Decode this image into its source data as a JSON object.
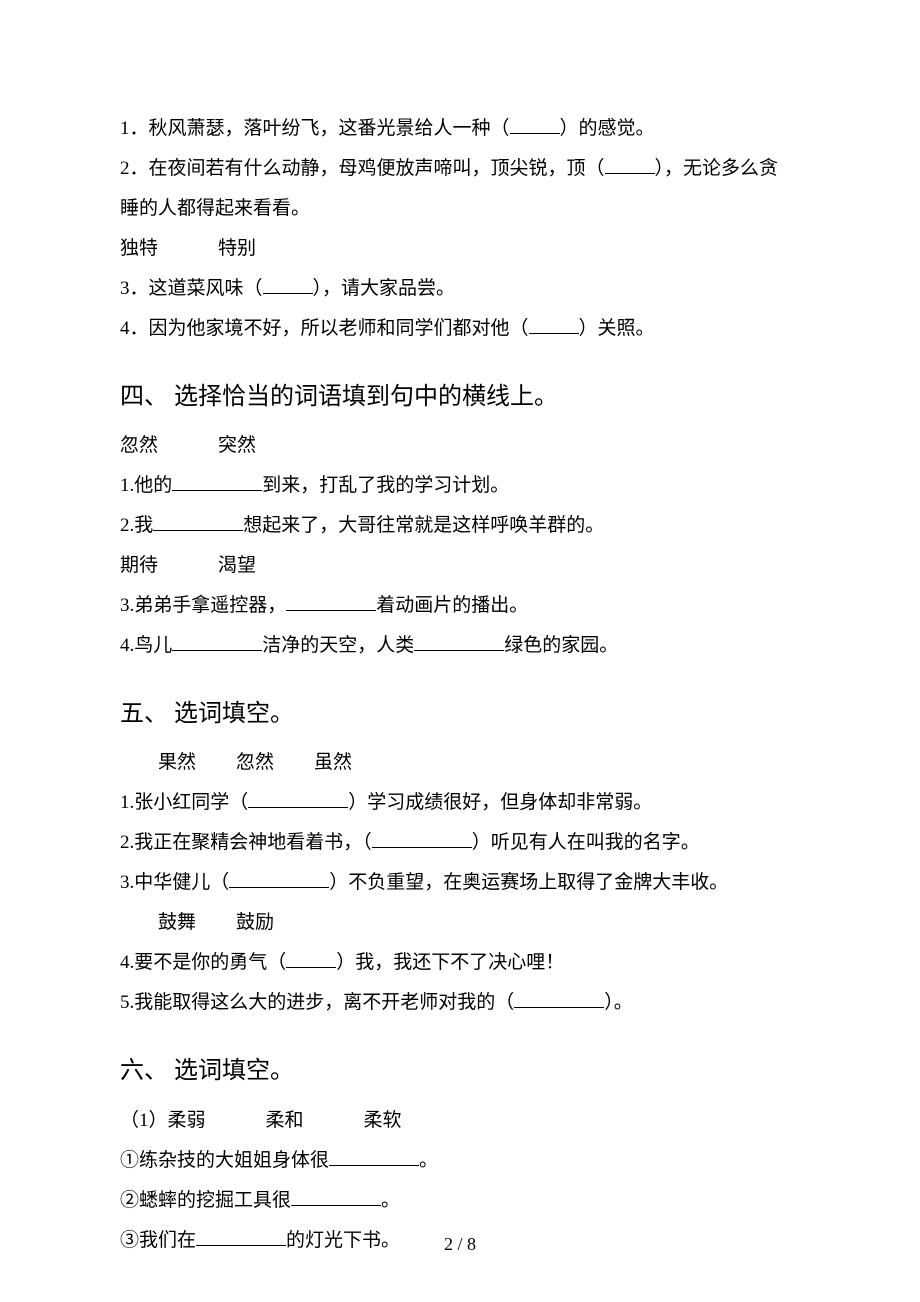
{
  "top": {
    "q1": "1．秋风萧瑟，落叶纷飞，这番光景给人一种（",
    "q1_end": "）的感觉。",
    "q2a": "2．在夜间若有什么动静，母鸡便放声啼叫，顶尖锐，顶（",
    "q2b": "），无论多么贪",
    "q2c": "睡的人都得起来看看。",
    "words": "独特",
    "words2": "特别",
    "q3": "3．这道菜风味（",
    "q3_end": "），请大家品尝。",
    "q4": "4．因为他家境不好，所以老师和同学们都对他（",
    "q4_end": "）关照。"
  },
  "s4": {
    "heading": "四、 选择恰当的词语填到句中的横线上。",
    "words_a1": "忽然",
    "words_a2": "突然",
    "q1a": "1.他的",
    "q1b": "到来，打乱了我的学习计划。",
    "q2a": "2.我",
    "q2b": "想起来了，大哥往常就是这样呼唤羊群的。",
    "words_b1": "期待",
    "words_b2": "渴望",
    "q3a": "3.弟弟手拿遥控器，",
    "q3b": "着动画片的播出。",
    "q4a": "4.鸟儿",
    "q4b": "洁净的天空，人类",
    "q4c": "绿色的家园。"
  },
  "s5": {
    "heading": "五、 选词填空。",
    "words1": "果然",
    "words2": "忽然",
    "words3": "虽然",
    "q1a": "1.张小红同学（",
    "q1b": "）学习成绩很好，但身体却非常弱。",
    "q2a": "2.我正在聚精会神地看着书，（",
    "q2b": "）听见有人在叫我的名字。",
    "q3a": "3.中华健儿（",
    "q3b": "）不负重望，在奥运赛场上取得了金牌大丰收。",
    "words4": "鼓舞",
    "words5": "鼓励",
    "q4a": "4.要不是你的勇气（",
    "q4b": "）我，我还下不了决心哩！",
    "q5a": "5.我能取得这么大的进步，离不开老师对我的（",
    "q5b": "）。"
  },
  "s6": {
    "heading": "六、 选词填空。",
    "group1_label": "（1）柔弱",
    "group1_w2": "柔和",
    "group1_w3": "柔软",
    "q1a": "①练杂技的大姐姐身体很",
    "q1b": "。",
    "q2a": "②蟋蟀的挖掘工具很",
    "q2b": "。",
    "q3a": "③我们在",
    "q3b": "的灯光下书。"
  },
  "page": "2 / 8"
}
